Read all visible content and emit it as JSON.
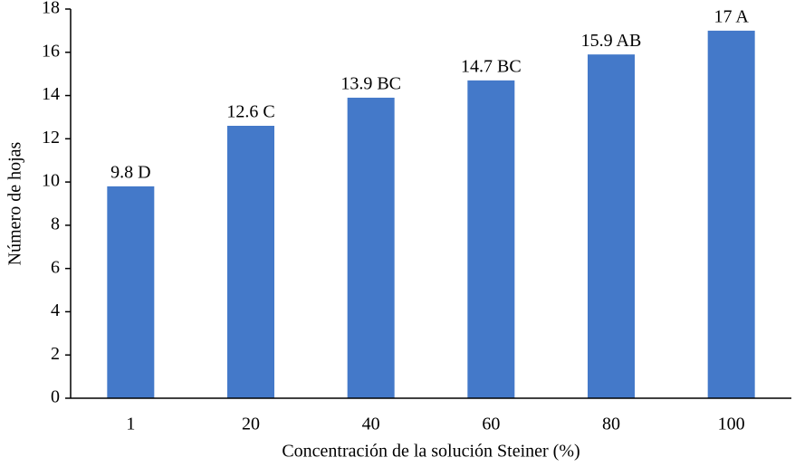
{
  "chart_data": {
    "type": "bar",
    "x_label": "Concentración de la solución Steiner (%)",
    "y_label": "Número de hojas",
    "categories": [
      "1",
      "20",
      "40",
      "60",
      "80",
      "100"
    ],
    "values": [
      9.8,
      12.6,
      13.9,
      14.7,
      15.9,
      17
    ],
    "value_labels": [
      "9.8 D",
      "12.6 C",
      "13.9 BC",
      "14.7 BC",
      "15.9 AB",
      "17 A"
    ],
    "color": "#4479c9",
    "ylim": [
      0,
      18
    ],
    "yticks": [
      0,
      2,
      4,
      6,
      8,
      10,
      12,
      14,
      16,
      18
    ],
    "grid": false
  }
}
